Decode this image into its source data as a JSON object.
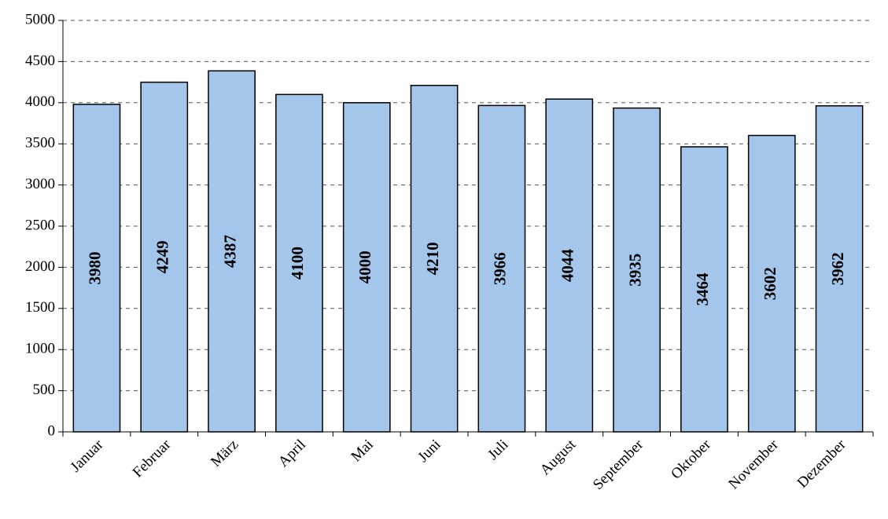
{
  "chart_data": {
    "type": "bar",
    "categories": [
      "Januar",
      "Februar",
      "März",
      "April",
      "Mai",
      "Juni",
      "Juli",
      "August",
      "September",
      "Oktober",
      "November",
      "Dezember"
    ],
    "values": [
      3980,
      4249,
      4387,
      4100,
      4000,
      4210,
      3966,
      4044,
      3935,
      3464,
      3602,
      3962
    ],
    "color": "#a3c6ea",
    "ylim": [
      0,
      5000
    ],
    "yticks": [
      0,
      500,
      1000,
      1500,
      2000,
      2500,
      3000,
      3500,
      4000,
      4500,
      5000
    ],
    "grid": true
  }
}
